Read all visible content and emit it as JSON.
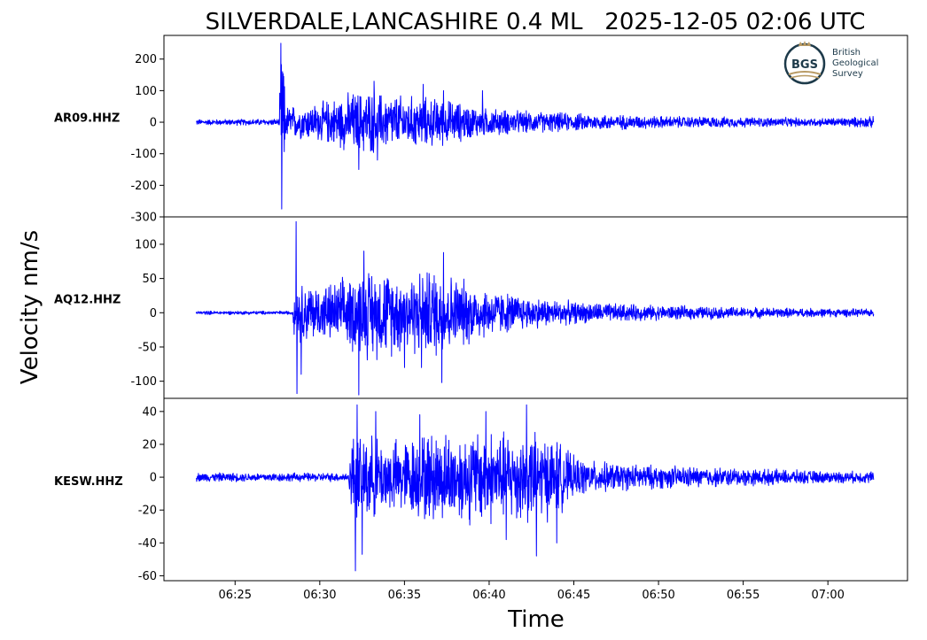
{
  "chart_data": {
    "type": "line",
    "title": "SILVERDALE,LANCASHIRE 0.4 ML   2025-12-05 02:06 UTC",
    "xlabel": "Time",
    "ylabel": "Velocity nm/s",
    "x_ticks": [
      "06:25",
      "06:30",
      "06:35",
      "06:40",
      "06:45",
      "06:50",
      "06:55",
      "07:00"
    ],
    "x_tick_minutes": [
      25,
      30,
      35,
      40,
      45,
      50,
      55,
      60
    ],
    "xlim_minutes": [
      20.8,
      64.7
    ],
    "trace_minutes": [
      22.7,
      62.7
    ],
    "line_color": "#0000ff",
    "grid": false,
    "logo": {
      "lines": [
        "British",
        "Geological",
        "Survey"
      ],
      "mark": "BGS"
    },
    "panels": [
      {
        "station": "AR09.HHZ",
        "ylim": [
          -300,
          275
        ],
        "y_ticks": [
          200,
          100,
          0,
          -100,
          -200,
          -300
        ],
        "y_tick_labels": [
          "200",
          "100",
          "0",
          "-100",
          "-200",
          "-300"
        ],
        "noise": 10,
        "envelope": [
          [
            22.7,
            10
          ],
          [
            27.6,
            12
          ],
          [
            27.7,
            250
          ],
          [
            27.8,
            270
          ],
          [
            28.0,
            60
          ],
          [
            29,
            60
          ],
          [
            30,
            70
          ],
          [
            31,
            90
          ],
          [
            32,
            110
          ],
          [
            33,
            115
          ],
          [
            34,
            100
          ],
          [
            35,
            95
          ],
          [
            36,
            90
          ],
          [
            37,
            85
          ],
          [
            38,
            75
          ],
          [
            39,
            60
          ],
          [
            40,
            50
          ],
          [
            42,
            40
          ],
          [
            45,
            32
          ],
          [
            50,
            22
          ],
          [
            55,
            18
          ],
          [
            60,
            15
          ],
          [
            62.7,
            20
          ]
        ],
        "peaks": [
          [
            27.7,
            250
          ],
          [
            27.75,
            -275
          ],
          [
            27.8,
            160
          ],
          [
            32.3,
            -150
          ],
          [
            33.2,
            130
          ],
          [
            36.1,
            120
          ],
          [
            37.3,
            100
          ],
          [
            39.6,
            100
          ],
          [
            33.4,
            -120
          ]
        ]
      },
      {
        "station": "AQ12.HHZ",
        "ylim": [
          -125,
          140
        ],
        "y_ticks": [
          100,
          50,
          0,
          -50,
          -100
        ],
        "y_tick_labels": [
          "100",
          "50",
          "0",
          "-50",
          "-100"
        ],
        "noise": 3,
        "envelope": [
          [
            22.7,
            3
          ],
          [
            28.4,
            3
          ],
          [
            28.5,
            40
          ],
          [
            29,
            50
          ],
          [
            30,
            45
          ],
          [
            31,
            50
          ],
          [
            32,
            65
          ],
          [
            33,
            75
          ],
          [
            34,
            70
          ],
          [
            35,
            65
          ],
          [
            36,
            70
          ],
          [
            37,
            75
          ],
          [
            38,
            60
          ],
          [
            39,
            50
          ],
          [
            40,
            40
          ],
          [
            42,
            28
          ],
          [
            45,
            18
          ],
          [
            50,
            12
          ],
          [
            55,
            9
          ],
          [
            60,
            7
          ],
          [
            62.7,
            6
          ]
        ],
        "peaks": [
          [
            28.6,
            133
          ],
          [
            28.65,
            -118
          ],
          [
            28.9,
            -90
          ],
          [
            32.3,
            -120
          ],
          [
            32.6,
            90
          ],
          [
            35.0,
            -80
          ],
          [
            37.3,
            88
          ],
          [
            37.2,
            -102
          ],
          [
            36.0,
            -80
          ]
        ]
      },
      {
        "station": "KESW.HHZ",
        "ylim": [
          -63,
          48
        ],
        "y_ticks": [
          40,
          20,
          0,
          -20,
          -40,
          -60
        ],
        "y_tick_labels": [
          "40",
          "20",
          "0",
          "-20",
          "-40",
          "-60"
        ],
        "noise": 3,
        "envelope": [
          [
            22.7,
            3
          ],
          [
            31.7,
            3
          ],
          [
            31.9,
            30
          ],
          [
            32.5,
            32
          ],
          [
            33,
            28
          ],
          [
            34,
            25
          ],
          [
            35,
            26
          ],
          [
            36,
            30
          ],
          [
            37,
            32
          ],
          [
            38,
            30
          ],
          [
            39,
            32
          ],
          [
            40,
            33
          ],
          [
            41,
            30
          ],
          [
            42,
            32
          ],
          [
            43,
            30
          ],
          [
            44,
            26
          ],
          [
            45,
            14
          ],
          [
            46,
            11
          ],
          [
            48,
            9
          ],
          [
            50,
            8
          ],
          [
            55,
            6
          ],
          [
            60,
            4
          ],
          [
            62.7,
            4
          ]
        ],
        "peaks": [
          [
            32.1,
            -57
          ],
          [
            32.2,
            44
          ],
          [
            32.5,
            -47
          ],
          [
            33.3,
            40
          ],
          [
            35.9,
            38
          ],
          [
            39.8,
            40
          ],
          [
            42.2,
            44
          ],
          [
            42.8,
            -48
          ],
          [
            44.0,
            -40
          ],
          [
            41.0,
            -38
          ]
        ]
      }
    ]
  }
}
